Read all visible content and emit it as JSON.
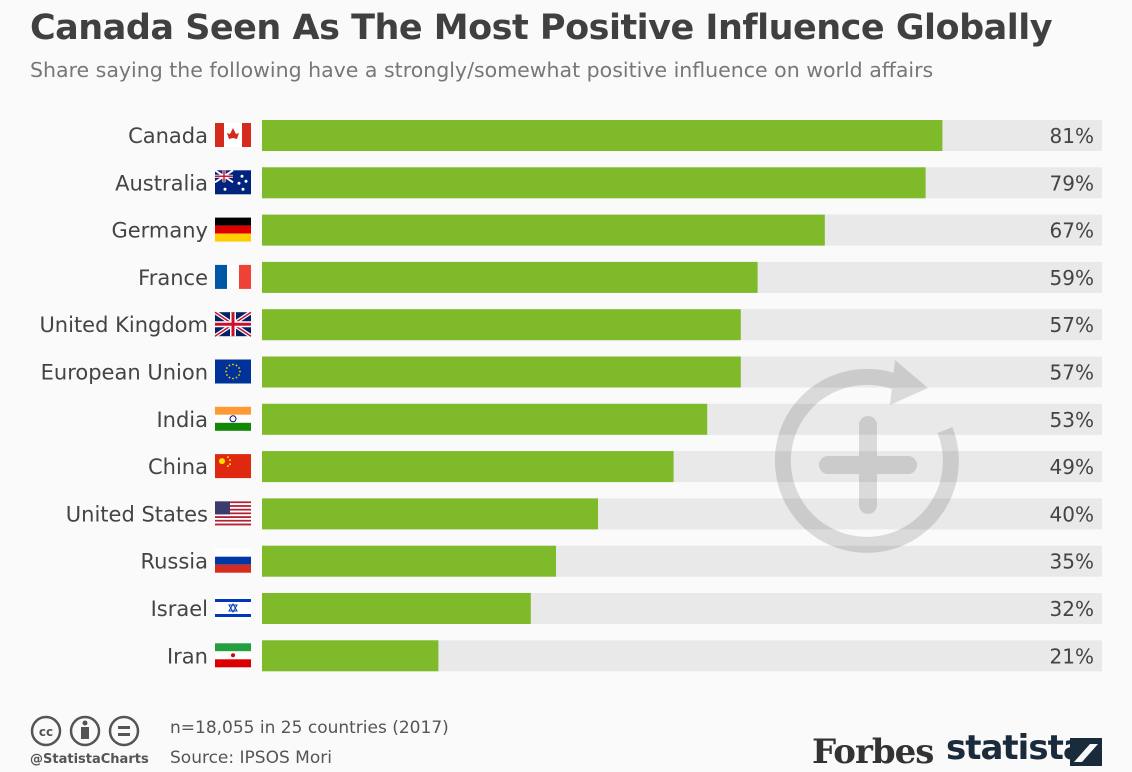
{
  "title": "Canada Seen As The Most Positive Influence Globally",
  "subtitle": "Share saying the following have a strongly/somewhat positive influence on world affairs",
  "colors": {
    "bar": "#7fba2a",
    "track": "#e9e9e9"
  },
  "chart_data": {
    "type": "bar",
    "orientation": "horizontal",
    "categories": [
      "Canada",
      "Australia",
      "Germany",
      "France",
      "United Kingdom",
      "European Union",
      "India",
      "China",
      "United States",
      "Russia",
      "Israel",
      "Iran"
    ],
    "values": [
      81,
      79,
      67,
      59,
      57,
      57,
      53,
      49,
      40,
      35,
      32,
      21
    ],
    "value_labels": [
      "81%",
      "79%",
      "67%",
      "59%",
      "57%",
      "57%",
      "53%",
      "49%",
      "40%",
      "35%",
      "32%",
      "21%"
    ],
    "xlim": [
      0,
      100
    ],
    "grid": false
  },
  "footer": {
    "note": "n=18,055 in 25 countries (2017)",
    "source": "Source: IPSOS Mori",
    "handle": "@StatistaCharts",
    "forbes": "Forbes",
    "statista": "statista"
  }
}
